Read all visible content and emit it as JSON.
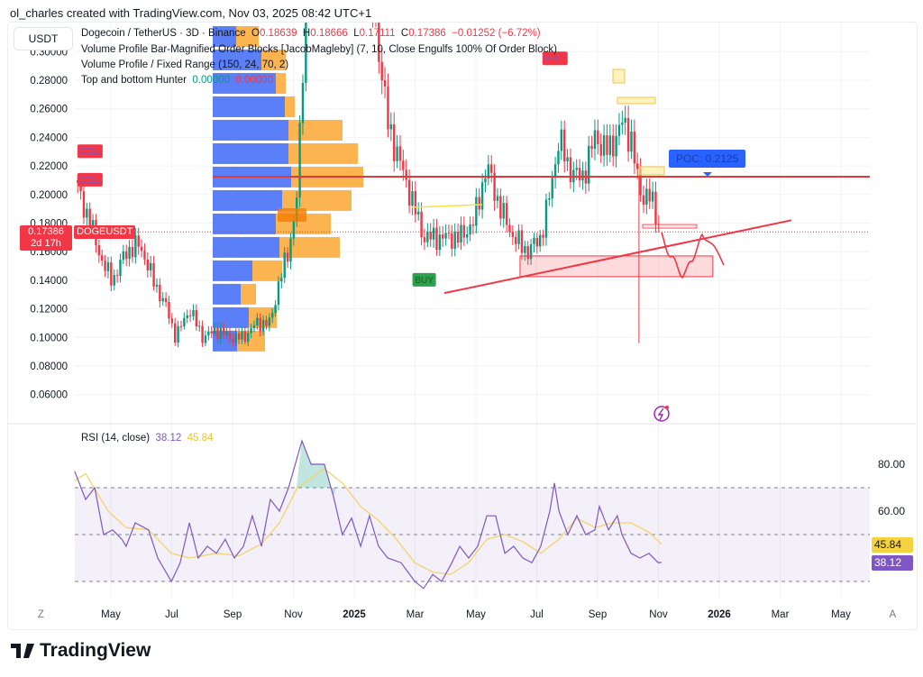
{
  "header": {
    "credit": "ol_charles created with TradingView.com, Nov 03, 2025 08:42 UTC+1",
    "currency": "USDT"
  },
  "legend": {
    "symbol": "Dogecoin / TetherUS · 3D · Binance",
    "o_label": "O",
    "o": "0.18639",
    "h_label": "H",
    "h": "0.18666",
    "l_label": "L",
    "l": "0.17111",
    "c_label": "C",
    "c": "0.17386",
    "change": "−0.01252 (−6.72%)",
    "ind1": "Volume Profile Bar-Magnified Order Blocks [JacobMagleby] (7, 10, Close Engulfs 100% Of Order Block)",
    "ind2": "Volume Profile / Fixed Range (150, 24, 70, 2)",
    "ind3": "Top and bottom Hunter",
    "ind3_v1": "0.00000",
    "ind3_v2": "0.00000",
    "rsi": "RSI (14, close)",
    "rsi_v": "38.12",
    "rsi_ma": "45.84"
  },
  "labels": {
    "price_tag": "0.17386",
    "countdown": "2d 17h",
    "symbol_tag": "DOGEUSDT",
    "poc": "POC: 0.2125",
    "sell": "SELL",
    "buy": "BUY",
    "rsi_tag": "38.12",
    "rsi_ma_tag": "45.84"
  },
  "brand": "TradingView",
  "colors": {
    "up": "#089981",
    "down": "#f23645",
    "buy_vol": "#5b7ff6",
    "sell_vol": "#fbb44f",
    "rsi": "#7e57c2",
    "rsi_ma": "#f2d46b",
    "poc_tag": "#2962ff"
  },
  "chart_data": {
    "type": "candlestick",
    "title": "Dogecoin / TetherUS · 3D · Binance",
    "x_unit": "months since 2024-05-01",
    "xticks": [
      {
        "m": -2.3,
        "label": "Z"
      },
      {
        "m": 0,
        "label": "May"
      },
      {
        "m": 2,
        "label": "Jul"
      },
      {
        "m": 4,
        "label": "Sep"
      },
      {
        "m": 6,
        "label": "Nov"
      },
      {
        "m": 8,
        "label": "2025"
      },
      {
        "m": 10,
        "label": "Mar"
      },
      {
        "m": 12,
        "label": "May"
      },
      {
        "m": 14,
        "label": "Jul"
      },
      {
        "m": 16,
        "label": "Sep"
      },
      {
        "m": 18,
        "label": "Nov"
      },
      {
        "m": 20,
        "label": "2026"
      },
      {
        "m": 22,
        "label": "Mar"
      },
      {
        "m": 24,
        "label": "May"
      },
      {
        "m": 25.7,
        "label": "A"
      }
    ],
    "yticks": [
      "0.30000",
      "0.28000",
      "0.26000",
      "0.24000",
      "0.22000",
      "0.20000",
      "0.18000",
      "0.16000",
      "0.14000",
      "0.12000",
      "0.10000",
      "0.08000",
      "0.06000"
    ],
    "close_path": [
      [
        -1.19,
        0.21
      ],
      [
        -0.68,
        0.18
      ],
      [
        -0.24,
        0.15
      ],
      [
        0.06,
        0.14
      ],
      [
        0.5,
        0.16
      ],
      [
        0.95,
        0.165
      ],
      [
        1.39,
        0.14
      ],
      [
        1.84,
        0.12
      ],
      [
        2.13,
        0.1
      ],
      [
        2.58,
        0.12
      ],
      [
        3.02,
        0.1
      ],
      [
        3.47,
        0.105
      ],
      [
        3.91,
        0.1
      ],
      [
        4.36,
        0.1
      ],
      [
        4.8,
        0.11
      ],
      [
        5.24,
        0.11
      ],
      [
        5.54,
        0.14
      ],
      [
        5.84,
        0.16
      ],
      [
        6.13,
        0.2
      ],
      [
        6.43,
        0.35
      ],
      [
        6.87,
        0.4
      ],
      [
        7.32,
        0.4
      ],
      [
        7.76,
        0.38
      ],
      [
        8.21,
        0.36
      ],
      [
        8.65,
        0.33
      ],
      [
        9.1,
        0.25
      ],
      [
        9.54,
        0.22
      ],
      [
        9.99,
        0.19
      ],
      [
        10.28,
        0.17
      ],
      [
        10.58,
        0.17
      ],
      [
        11.02,
        0.17
      ],
      [
        11.47,
        0.17
      ],
      [
        11.91,
        0.18
      ],
      [
        12.36,
        0.22
      ],
      [
        12.8,
        0.19
      ],
      [
        13.24,
        0.17
      ],
      [
        13.69,
        0.16
      ],
      [
        14.13,
        0.17
      ],
      [
        14.43,
        0.2
      ],
      [
        14.73,
        0.24
      ],
      [
        15.02,
        0.22
      ],
      [
        15.47,
        0.21
      ],
      [
        15.91,
        0.24
      ],
      [
        16.36,
        0.23
      ],
      [
        16.8,
        0.25
      ],
      [
        17.1,
        0.24
      ],
      [
        17.39,
        0.2
      ],
      [
        17.69,
        0.2
      ],
      [
        18.1,
        0.17386
      ]
    ],
    "crash_wick": {
      "m": 17.36,
      "low": 0.096
    },
    "last_price": 0.17386,
    "poc": 0.2125,
    "volume_profile": {
      "top_price": 0.3185,
      "row_height": 0.0164,
      "rows": [
        [
          26,
          25
        ],
        [
          54,
          27
        ],
        [
          70,
          11
        ],
        [
          80,
          11
        ],
        [
          84,
          60
        ],
        [
          84,
          77
        ],
        [
          87,
          80
        ],
        [
          77,
          77
        ],
        [
          70,
          61
        ],
        [
          74,
          67
        ],
        [
          44,
          33
        ],
        [
          31,
          17
        ],
        [
          40,
          31
        ],
        [
          27,
          31
        ]
      ]
    },
    "trendline": [
      [
        10.96,
        0.131
      ],
      [
        22.37,
        0.182
      ]
    ],
    "demand_zone": {
      "m": [
        13.45,
        19.79
      ],
      "price": [
        0.1425,
        0.157
      ]
    },
    "signals": [
      {
        "type": "SELL",
        "m": -1.1,
        "price": 0.23
      },
      {
        "type": "SELL",
        "m": -1.1,
        "price": 0.21
      },
      {
        "type": "SELL",
        "m": 14.6,
        "price": 0.295
      },
      {
        "type": "BUY",
        "m": 10.3,
        "price": 0.14
      }
    ],
    "rsi": {
      "ylim": [
        22,
        94
      ],
      "levels": [
        70,
        50,
        30
      ],
      "ticks": [
        "80.00",
        "60.00"
      ],
      "series": [
        [
          -1.19,
          77
        ],
        [
          -0.83,
          65
        ],
        [
          -0.53,
          70
        ],
        [
          -0.24,
          50
        ],
        [
          0.06,
          52
        ],
        [
          0.36,
          48
        ],
        [
          0.5,
          45
        ],
        [
          0.8,
          55
        ],
        [
          1.24,
          52
        ],
        [
          1.54,
          40
        ],
        [
          1.99,
          30
        ],
        [
          2.28,
          38
        ],
        [
          2.58,
          55
        ],
        [
          2.87,
          40
        ],
        [
          3.17,
          45
        ],
        [
          3.47,
          42
        ],
        [
          3.76,
          48
        ],
        [
          4.06,
          40
        ],
        [
          4.36,
          45
        ],
        [
          4.65,
          58
        ],
        [
          4.95,
          45
        ],
        [
          5.24,
          65
        ],
        [
          5.54,
          60
        ],
        [
          5.84,
          70
        ],
        [
          6.28,
          90
        ],
        [
          6.58,
          80
        ],
        [
          7.02,
          80
        ],
        [
          7.32,
          66
        ],
        [
          7.61,
          50
        ],
        [
          7.91,
          57
        ],
        [
          8.21,
          45
        ],
        [
          8.5,
          58
        ],
        [
          8.8,
          45
        ],
        [
          9.1,
          40
        ],
        [
          9.54,
          38
        ],
        [
          9.99,
          30
        ],
        [
          10.28,
          27
        ],
        [
          10.58,
          33
        ],
        [
          10.87,
          30
        ],
        [
          11.17,
          37
        ],
        [
          11.47,
          45
        ],
        [
          11.76,
          40
        ],
        [
          12.06,
          45
        ],
        [
          12.36,
          58
        ],
        [
          12.65,
          58
        ],
        [
          12.95,
          42
        ],
        [
          13.24,
          45
        ],
        [
          13.54,
          40
        ],
        [
          13.84,
          38
        ],
        [
          14.13,
          45
        ],
        [
          14.43,
          60
        ],
        [
          14.58,
          72
        ],
        [
          14.73,
          60
        ],
        [
          15.02,
          50
        ],
        [
          15.32,
          58
        ],
        [
          15.61,
          50
        ],
        [
          15.91,
          52
        ],
        [
          16.06,
          62
        ],
        [
          16.36,
          52
        ],
        [
          16.65,
          58
        ],
        [
          16.8,
          50
        ],
        [
          17.1,
          42
        ],
        [
          17.39,
          40
        ],
        [
          17.69,
          42
        ],
        [
          17.99,
          38
        ],
        [
          18.1,
          38.12
        ]
      ],
      "ma": [
        [
          -1.19,
          73
        ],
        [
          -0.83,
          76
        ],
        [
          -0.09,
          60
        ],
        [
          0.5,
          53
        ],
        [
          1.24,
          52
        ],
        [
          1.99,
          42
        ],
        [
          2.58,
          40
        ],
        [
          3.47,
          42
        ],
        [
          4.21,
          41
        ],
        [
          4.95,
          46
        ],
        [
          5.54,
          55
        ],
        [
          6.13,
          70
        ],
        [
          7.02,
          78
        ],
        [
          7.61,
          72
        ],
        [
          8.21,
          62
        ],
        [
          8.8,
          56
        ],
        [
          9.39,
          48
        ],
        [
          9.99,
          38
        ],
        [
          10.58,
          34
        ],
        [
          11.17,
          33
        ],
        [
          11.76,
          38
        ],
        [
          12.36,
          48
        ],
        [
          12.95,
          50
        ],
        [
          13.54,
          47
        ],
        [
          14.13,
          42
        ],
        [
          14.73,
          48
        ],
        [
          15.32,
          57
        ],
        [
          15.91,
          53
        ],
        [
          16.5,
          55
        ],
        [
          17.1,
          55
        ],
        [
          17.69,
          51
        ],
        [
          18.1,
          45.84
        ]
      ]
    }
  }
}
